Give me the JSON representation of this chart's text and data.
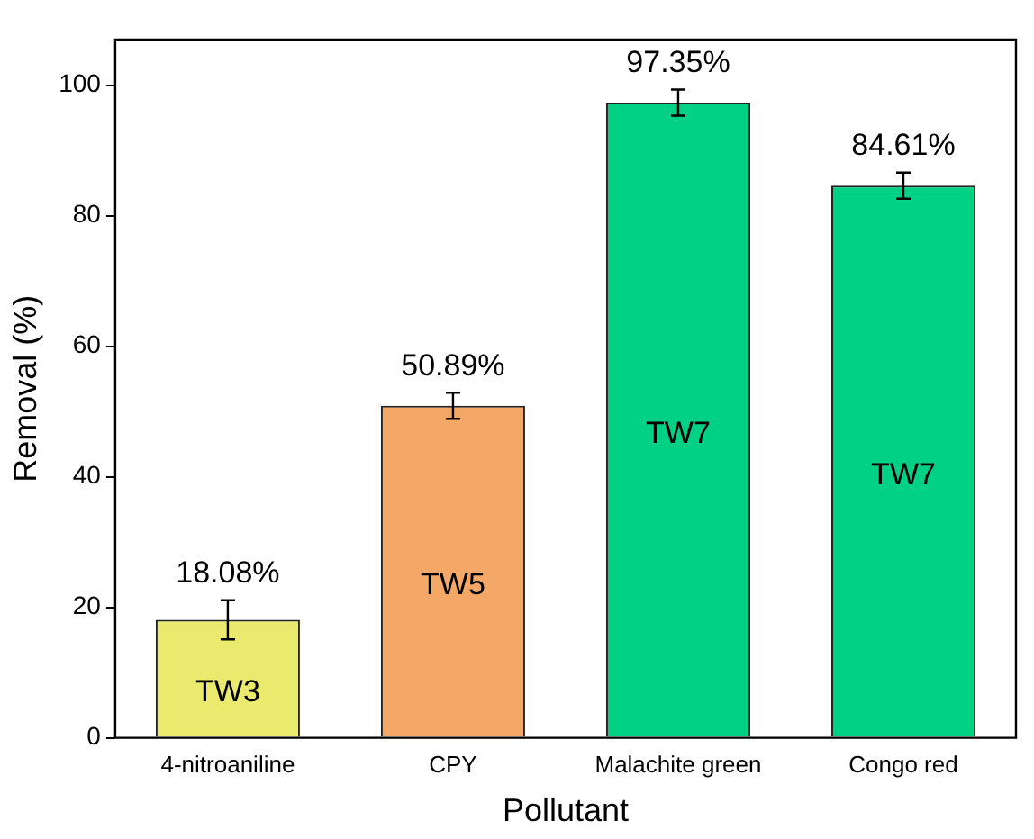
{
  "chart_data": {
    "type": "bar",
    "xlabel": "Pollutant",
    "ylabel": "Removal (%)",
    "categories": [
      "4-nitroaniline",
      "CPY",
      "Malachite green",
      "Congo red"
    ],
    "values": [
      18.08,
      50.89,
      97.35,
      84.61
    ],
    "colors": [
      "#eaea6e",
      "#f4a868",
      "#00d184",
      "#00d184"
    ],
    "errors": [
      3,
      2,
      2,
      2
    ],
    "value_labels": [
      "18.08%",
      "50.89%",
      "97.35%",
      "84.61%"
    ],
    "annotations": [
      "TW3",
      "TW5",
      "TW7",
      "TW7"
    ],
    "ylim": [
      0,
      107
    ],
    "yticks": [
      0,
      20,
      40,
      60,
      80,
      100
    ],
    "grid": false,
    "legend": false
  }
}
